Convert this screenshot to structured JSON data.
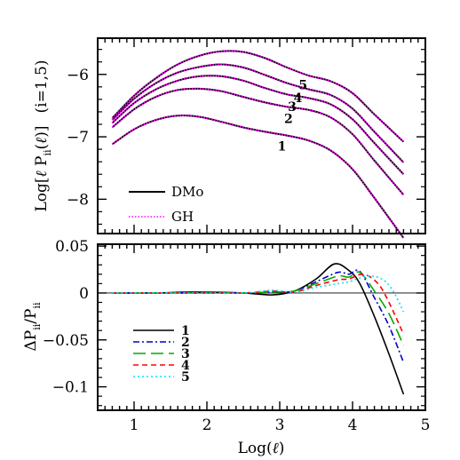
{
  "chart_data": [
    {
      "type": "line",
      "title": "",
      "xlabel": "",
      "ylabel_parts": [
        "Log[",
        "ℓ",
        " P",
        "ii",
        "(",
        "ℓ",
        ")]",
        "(i=1,5)"
      ],
      "xlim": [
        0.5,
        5.0
      ],
      "ylim": [
        -8.55,
        -5.42
      ],
      "xticks": [
        1,
        2,
        3,
        4,
        5
      ],
      "yticks": [
        -6,
        -7,
        -8
      ],
      "ytick_labels": [
        "−6",
        "−7",
        "−8"
      ],
      "grid": false,
      "legend": {
        "placement": "bottom-left",
        "entries": [
          {
            "label": "DMo",
            "color": "#000000",
            "style": "solid"
          },
          {
            "label": "GH",
            "color": "#ff00ff",
            "style": "dotted"
          }
        ]
      },
      "series": [
        {
          "name": "1",
          "color": "#000000",
          "x": [
            0.7,
            1.0,
            1.3,
            1.6,
            1.9,
            2.2,
            2.5,
            2.8,
            3.1,
            3.4,
            3.7,
            4.0,
            4.3,
            4.7
          ],
          "y": [
            -7.12,
            -6.88,
            -6.73,
            -6.66,
            -6.68,
            -6.76,
            -6.85,
            -6.92,
            -6.98,
            -7.06,
            -7.22,
            -7.52,
            -7.98,
            -8.62
          ]
        },
        {
          "name": "2",
          "color": "#000000",
          "x": [
            0.7,
            1.0,
            1.3,
            1.6,
            1.9,
            2.2,
            2.5,
            2.8,
            3.1,
            3.4,
            3.7,
            4.0,
            4.3,
            4.7
          ],
          "y": [
            -6.85,
            -6.56,
            -6.36,
            -6.25,
            -6.23,
            -6.27,
            -6.36,
            -6.45,
            -6.52,
            -6.57,
            -6.69,
            -6.96,
            -7.38,
            -7.93
          ]
        },
        {
          "name": "3",
          "color": "#000000",
          "x": [
            0.7,
            1.0,
            1.3,
            1.6,
            1.9,
            2.2,
            2.5,
            2.8,
            3.1,
            3.4,
            3.7,
            4.0,
            4.3,
            4.7
          ],
          "y": [
            -6.78,
            -6.46,
            -6.24,
            -6.1,
            -6.03,
            -6.03,
            -6.1,
            -6.22,
            -6.32,
            -6.38,
            -6.48,
            -6.72,
            -7.1,
            -7.6
          ]
        },
        {
          "name": "4",
          "color": "#000000",
          "x": [
            0.7,
            1.0,
            1.3,
            1.6,
            1.9,
            2.2,
            2.5,
            2.8,
            3.1,
            3.4,
            3.7,
            4.0,
            4.3,
            4.7
          ],
          "y": [
            -6.73,
            -6.39,
            -6.14,
            -5.97,
            -5.88,
            -5.84,
            -5.89,
            -6.01,
            -6.14,
            -6.24,
            -6.33,
            -6.55,
            -6.92,
            -7.41
          ]
        },
        {
          "name": "5",
          "color": "#000000",
          "x": [
            0.7,
            1.0,
            1.3,
            1.6,
            1.9,
            2.2,
            2.5,
            2.8,
            3.1,
            3.4,
            3.7,
            4.0,
            4.3,
            4.7
          ],
          "y": [
            -6.7,
            -6.34,
            -6.06,
            -5.84,
            -5.7,
            -5.63,
            -5.64,
            -5.74,
            -5.89,
            -6.02,
            -6.11,
            -6.3,
            -6.64,
            -7.08
          ]
        }
      ]
    },
    {
      "type": "line",
      "title": "",
      "xlabel_parts": [
        "Log(",
        "ℓ",
        ")"
      ],
      "ylabel_parts": [
        "ΔP",
        "ii",
        "/P",
        "ii"
      ],
      "xlim": [
        0.5,
        5.0
      ],
      "ylim": [
        -0.125,
        0.052
      ],
      "xticks": [
        1,
        2,
        3,
        4,
        5
      ],
      "yticks": [
        0.05,
        0,
        -0.05,
        -0.1
      ],
      "ytick_labels": [
        "0.05",
        "0",
        "−0.05",
        "−0.1"
      ],
      "grid": false,
      "zero_line": true,
      "legend": {
        "placement": "bottom-left"
      },
      "series": [
        {
          "name": "1",
          "color": "#000000",
          "dash": "",
          "x": [
            0.7,
            1.3,
            1.8,
            2.5,
            2.9,
            3.2,
            3.5,
            3.75,
            3.95,
            4.1,
            4.3,
            4.5,
            4.7
          ],
          "y": [
            0,
            0,
            0.001,
            0,
            -0.002,
            0.002,
            0.015,
            0.031,
            0.024,
            0.01,
            -0.025,
            -0.065,
            -0.108
          ]
        },
        {
          "name": "2",
          "color": "#0000cc",
          "dash": "7,3,2,3",
          "x": [
            0.7,
            1.3,
            1.8,
            2.5,
            2.9,
            3.2,
            3.5,
            3.8,
            3.95,
            4.1,
            4.3,
            4.5,
            4.7
          ],
          "y": [
            0,
            0,
            0,
            0,
            0.001,
            0.002,
            0.012,
            0.022,
            0.02,
            0.023,
            -0.005,
            -0.035,
            -0.074
          ]
        },
        {
          "name": "3",
          "color": "#00aa00",
          "dash": "14,6",
          "x": [
            0.7,
            1.3,
            1.8,
            2.5,
            2.9,
            3.2,
            3.5,
            3.8,
            3.95,
            4.1,
            4.3,
            4.5,
            4.7
          ],
          "y": [
            0,
            0,
            0,
            0,
            0.001,
            0.002,
            0.01,
            0.018,
            0.017,
            0.022,
            0.002,
            -0.022,
            -0.056
          ]
        },
        {
          "name": "4",
          "color": "#ff0000",
          "dash": "6,4",
          "x": [
            0.7,
            1.3,
            1.8,
            2.5,
            2.9,
            3.2,
            3.5,
            3.8,
            3.95,
            4.15,
            4.35,
            4.5,
            4.7
          ],
          "y": [
            0,
            0,
            0,
            0,
            0.002,
            0.001,
            0.008,
            0.014,
            0.015,
            0.02,
            0.01,
            -0.01,
            -0.044
          ]
        },
        {
          "name": "5",
          "color": "#00e5ff",
          "dash": "2,3",
          "x": [
            0.7,
            1.3,
            1.8,
            2.5,
            2.9,
            3.2,
            3.5,
            3.8,
            3.95,
            4.2,
            4.4,
            4.55,
            4.7
          ],
          "y": [
            0,
            0,
            0,
            0,
            0.003,
            0.001,
            0.006,
            0.01,
            0.012,
            0.018,
            0.015,
            0.003,
            -0.02
          ]
        }
      ]
    }
  ]
}
